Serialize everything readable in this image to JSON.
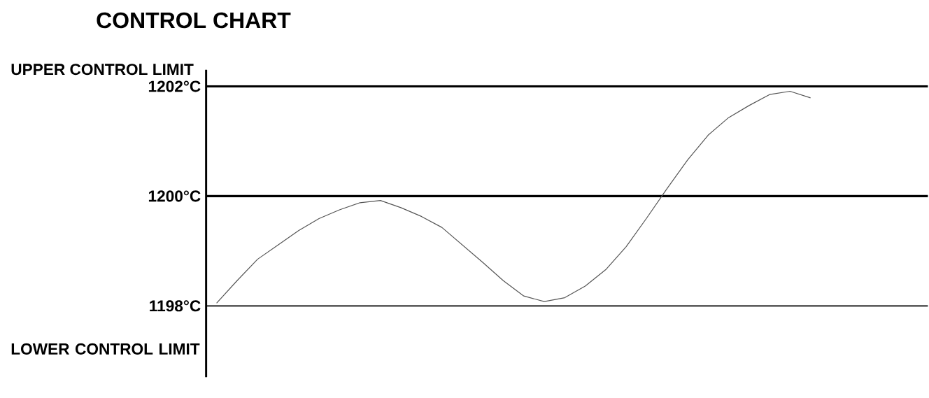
{
  "chart_data": {
    "type": "line",
    "title": "CONTROL CHART",
    "categories": [
      null,
      null,
      null,
      null,
      null,
      null,
      null,
      null,
      null,
      null,
      null,
      null,
      null,
      null,
      null,
      null,
      null,
      null,
      null,
      null,
      null,
      null,
      null,
      null,
      null,
      null,
      null,
      null,
      null,
      null
    ],
    "series": [
      {
        "color": "#555555",
        "values": [
          1198.05,
          1198.46,
          1198.85,
          1199.11,
          1199.37,
          1199.59,
          1199.75,
          1199.88,
          1199.92,
          1199.79,
          1199.63,
          1199.43,
          1199.11,
          1198.79,
          1198.46,
          1198.18,
          1198.08,
          1198.15,
          1198.36,
          1198.66,
          1199.08,
          1199.6,
          1200.14,
          1200.66,
          1201.11,
          1201.43,
          1201.65,
          1201.85,
          1201.91,
          1201.79
        ]
      }
    ],
    "ylim": [
      1196.7,
      1202.3
    ],
    "yticks": [
      {
        "value": 1198,
        "label": "1198°C"
      },
      {
        "value": 1200,
        "label": "1200°C"
      },
      {
        "value": 1202,
        "label": "1202°C"
      }
    ],
    "ref_lines": [
      {
        "axis": "y",
        "value": 1202,
        "label": "UPPER CONTROL LIMIT",
        "color": "#000000"
      },
      {
        "axis": "y",
        "value": 1200,
        "color": "#000000"
      },
      {
        "axis": "y",
        "value": 1198,
        "label": "LOWER CONTROL LIMIT",
        "color": "#000000"
      }
    ],
    "tick_labels": "y",
    "marker": "none",
    "line_style": "solid"
  }
}
